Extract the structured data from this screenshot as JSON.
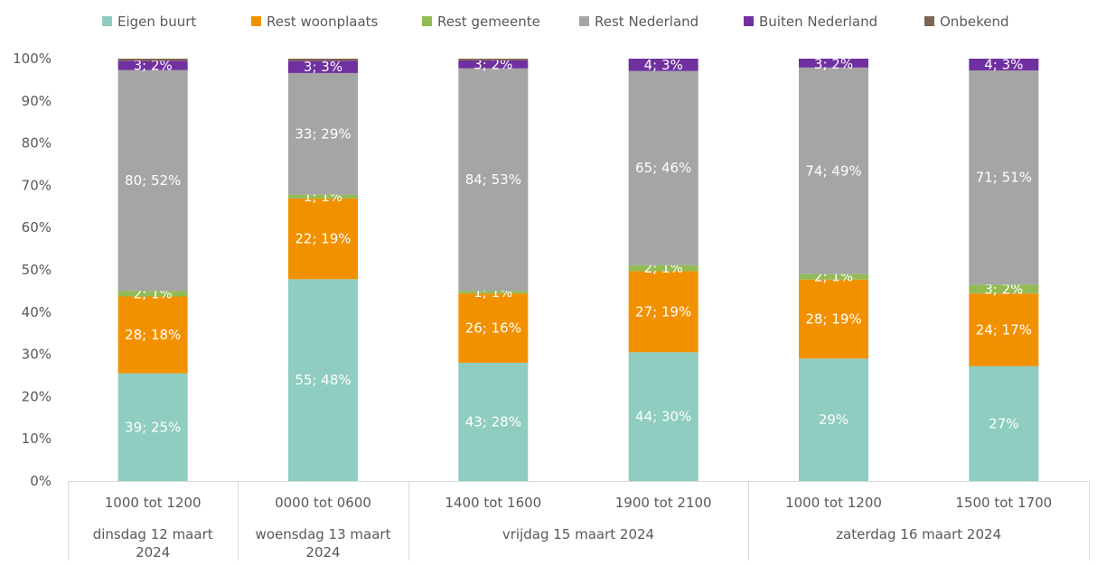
{
  "chart_data": {
    "type": "bar",
    "stacked": true,
    "percent_stacked": true,
    "legend_position": "top",
    "gridlines": false,
    "ylim": [
      0,
      100
    ],
    "y_ticks": [
      "0%",
      "10%",
      "20%",
      "30%",
      "40%",
      "50%",
      "60%",
      "70%",
      "80%",
      "90%",
      "100%"
    ],
    "categories": [
      "1000 tot 1200",
      "0000 tot 0600",
      "1400 tot 1600",
      "1900 tot 2100",
      "1000 tot 1200",
      "1500 tot 1700"
    ],
    "groups": [
      {
        "label_lines": [
          "dinsdag 12 maart",
          "2024"
        ],
        "span": [
          0,
          0
        ]
      },
      {
        "label_lines": [
          "woensdag 13 maart",
          "2024"
        ],
        "span": [
          1,
          1
        ]
      },
      {
        "label_lines": [
          "vrijdag 15 maart 2024"
        ],
        "span": [
          2,
          3
        ]
      },
      {
        "label_lines": [
          "zaterdag 16 maart 2024"
        ],
        "span": [
          4,
          5
        ]
      }
    ],
    "series": [
      {
        "name": "Eigen buurt",
        "color": "#8ecdc0",
        "values": [
          25.5,
          47.8,
          28.0,
          30.5,
          29.0,
          27.2
        ],
        "labels": [
          "39; 25%",
          "55; 48%",
          "43; 28%",
          "44; 30%",
          "29%",
          "27%"
        ]
      },
      {
        "name": "Rest woonplaats",
        "color": "#f29100",
        "values": [
          18.2,
          19.1,
          16.4,
          19.2,
          18.7,
          17.2
        ],
        "labels": [
          "28; 18%",
          "22; 19%",
          "26; 16%",
          "27; 19%",
          "28; 19%",
          "24; 17%"
        ]
      },
      {
        "name": "Rest gemeente",
        "color": "#92bb55",
        "values": [
          1.3,
          0.9,
          0.6,
          1.4,
          1.3,
          2.1
        ],
        "labels": [
          "2; 1%",
          "1; 1%",
          "1; 1%",
          "2; 1%",
          "2; 1%",
          "3; 2%"
        ]
      },
      {
        "name": "Rest Nederland",
        "color": "#a5a5a5",
        "values": [
          52.3,
          28.8,
          52.7,
          46.0,
          48.9,
          50.7
        ],
        "labels": [
          "80; 52%",
          "33; 29%",
          "84; 53%",
          "65; 46%",
          "74; 49%",
          "71; 51%"
        ]
      },
      {
        "name": "Buiten Nederland",
        "color": "#7030a0",
        "values": [
          2.2,
          2.9,
          1.9,
          2.9,
          2.1,
          2.8
        ],
        "labels": [
          "3; 2%",
          "3; 3%",
          "3; 2%",
          "4; 3%",
          "3; 2%",
          "4; 3%"
        ]
      },
      {
        "name": "Onbekend",
        "color": "#7f6451",
        "values": [
          0.5,
          0.5,
          0.4,
          0.0,
          0.0,
          0.0
        ],
        "labels": [
          "",
          "",
          "",
          "",
          "",
          ""
        ]
      }
    ]
  }
}
